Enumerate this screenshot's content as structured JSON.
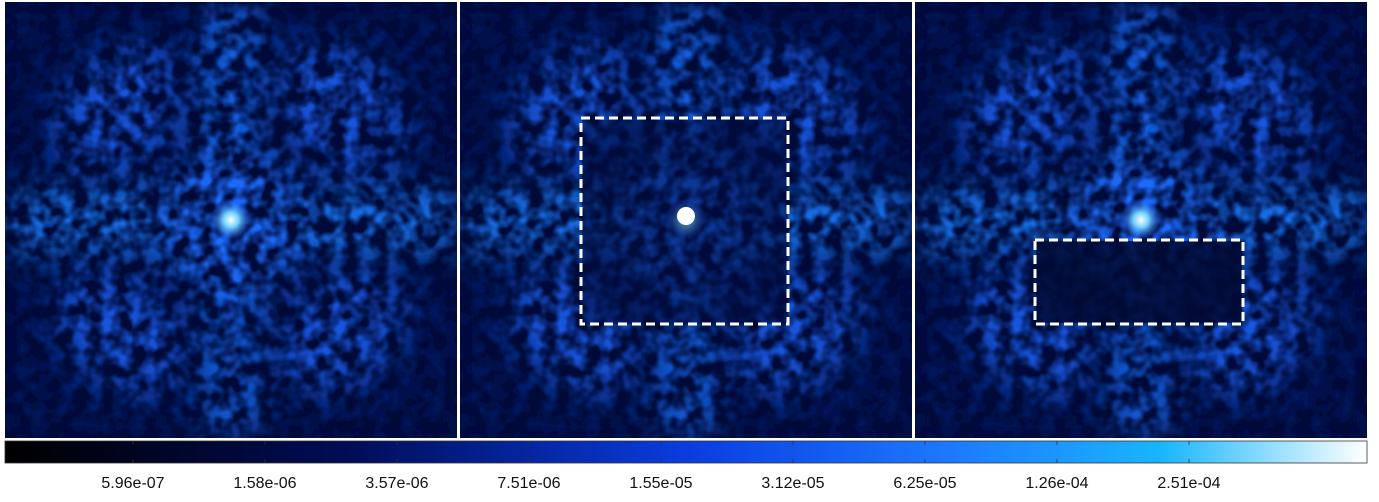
{
  "colorbar": {
    "tick_labels": [
      "5.96e-07",
      "1.58e-06",
      "3.57e-06",
      "7.51e-06",
      "1.55e-05",
      "3.12e-05",
      "6.25e-05",
      "1.26e-04",
      "2.51e-04"
    ]
  }
}
